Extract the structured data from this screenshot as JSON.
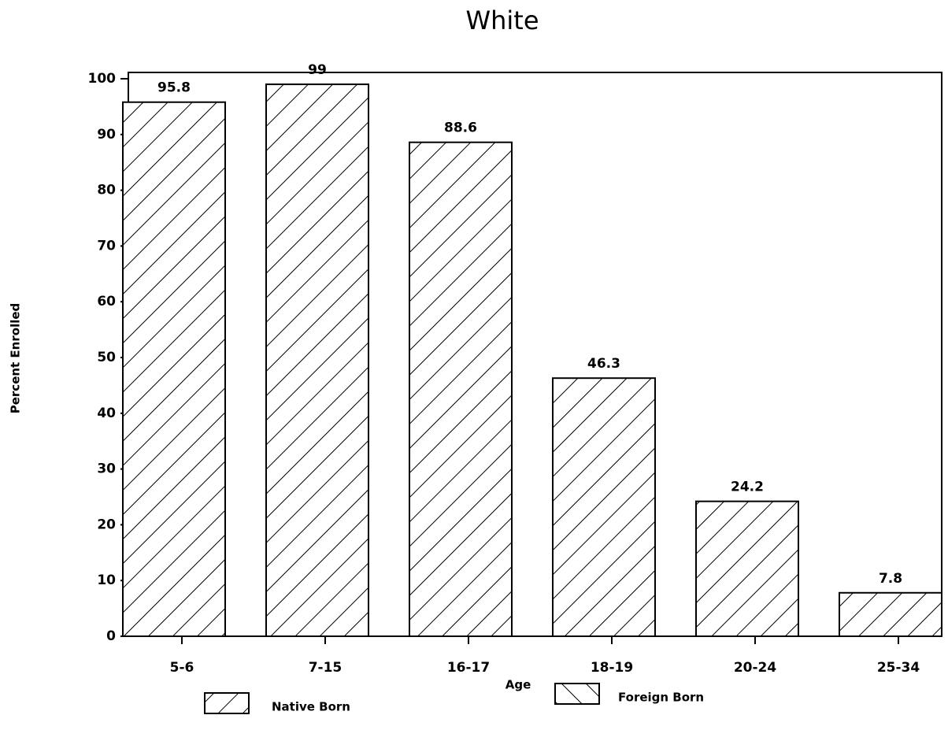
{
  "chart_data": {
    "type": "bar",
    "title": "White",
    "x_label": "Age",
    "y_label": "Percent Enrolled",
    "categories": [
      "5-6",
      "7-15",
      "16-17",
      "18-19",
      "20-24",
      "25-34"
    ],
    "series": [
      {
        "name": "Native Born",
        "color": "#000000",
        "values": [
          95.8,
          99,
          88.6,
          46.3,
          24.2,
          7.8
        ]
      },
      {
        "name": "Foreign Born",
        "color": "#000000",
        "values": [
          null,
          null,
          null,
          null,
          null,
          null
        ]
      }
    ],
    "ylim": [
      0,
      100
    ],
    "yticks": [
      0,
      10,
      20,
      30,
      40,
      50,
      60,
      70,
      80,
      90,
      100
    ]
  }
}
